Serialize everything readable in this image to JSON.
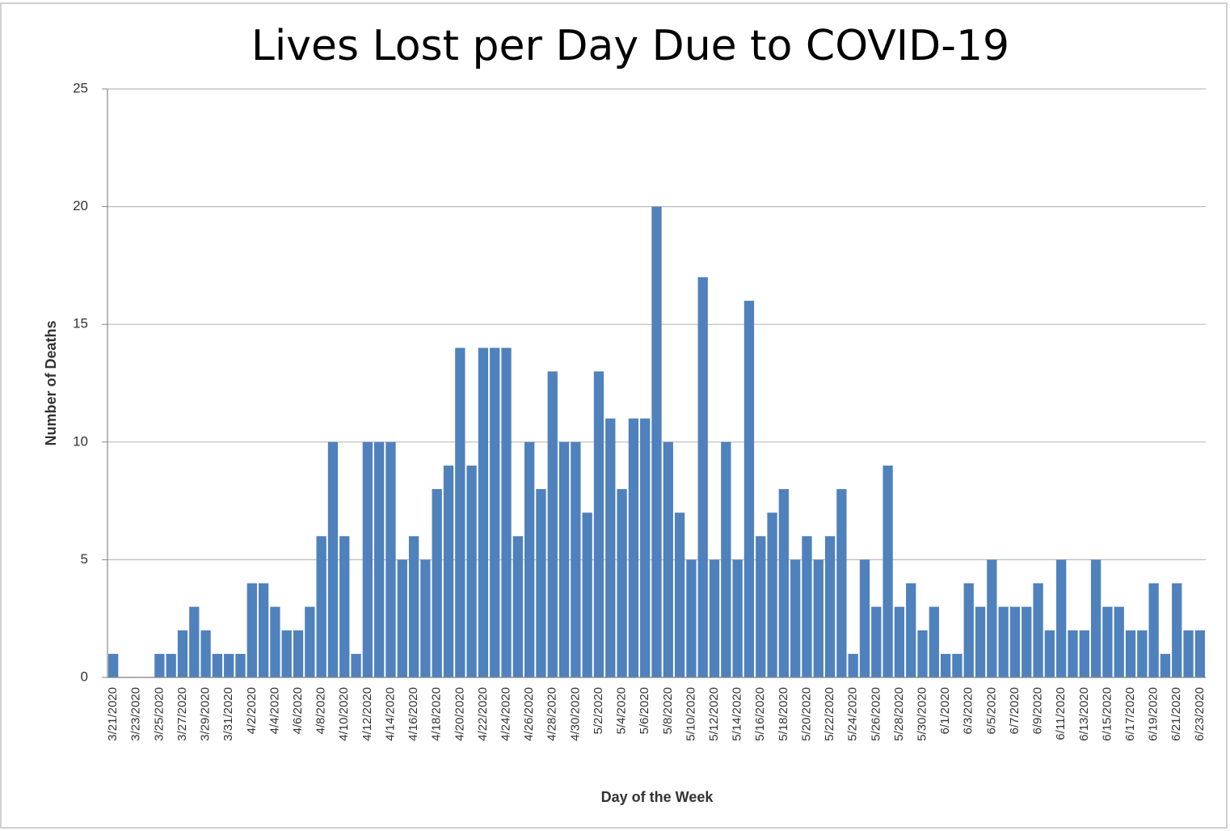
{
  "chart_data": {
    "type": "bar",
    "title": "Lives Lost per Day Due to COVID-19",
    "x_label": "Day of the Week",
    "y_label": "Number of Deaths",
    "color": "#4f81bd",
    "categories": [
      "3/21/2020",
      null,
      "3/23/2020",
      null,
      "3/25/2020",
      null,
      "3/27/2020",
      null,
      "3/29/2020",
      null,
      "3/31/2020",
      null,
      "4/2/2020",
      null,
      "4/4/2020",
      null,
      "4/6/2020",
      null,
      "4/8/2020",
      null,
      "4/10/2020",
      null,
      "4/12/2020",
      null,
      "4/14/2020",
      null,
      "4/16/2020",
      null,
      "4/18/2020",
      null,
      "4/20/2020",
      null,
      "4/22/2020",
      null,
      "4/24/2020",
      null,
      "4/26/2020",
      null,
      "4/28/2020",
      null,
      "4/30/2020",
      null,
      "5/2/2020",
      null,
      "5/4/2020",
      null,
      "5/6/2020",
      null,
      "5/8/2020",
      null,
      "5/10/2020",
      null,
      "5/12/2020",
      null,
      "5/14/2020",
      null,
      "5/16/2020",
      null,
      "5/18/2020",
      null,
      "5/20/2020",
      null,
      "5/22/2020",
      null,
      "5/24/2020",
      null,
      "5/26/2020",
      null,
      "5/28/2020",
      null,
      "5/30/2020",
      null,
      "6/1/2020",
      null,
      "6/3/2020",
      null,
      "6/5/2020",
      null,
      "6/7/2020",
      null,
      "6/9/2020",
      null,
      "6/11/2020",
      null,
      "6/13/2020",
      null,
      "6/15/2020",
      null,
      "6/17/2020",
      null,
      "6/19/2020",
      null,
      "6/21/2020",
      null,
      "6/23/2020"
    ],
    "values": [
      1,
      0,
      0,
      0,
      1,
      1,
      2,
      3,
      2,
      1,
      1,
      1,
      4,
      4,
      3,
      2,
      2,
      3,
      6,
      10,
      6,
      1,
      10,
      10,
      10,
      5,
      6,
      5,
      8,
      9,
      14,
      9,
      14,
      14,
      14,
      6,
      10,
      8,
      13,
      10,
      10,
      7,
      13,
      11,
      8,
      11,
      11,
      20,
      10,
      7,
      5,
      17,
      5,
      10,
      5,
      16,
      6,
      7,
      8,
      5,
      6,
      5,
      6,
      8,
      1,
      5,
      3,
      9,
      3,
      4,
      2,
      3,
      1,
      1,
      4,
      3,
      5,
      3,
      3,
      3,
      4,
      2,
      5,
      2,
      2,
      5,
      3,
      3,
      2,
      2,
      4,
      1,
      4,
      2,
      2
    ],
    "ylim": [
      0,
      25
    ],
    "yticks": [
      0,
      5,
      10,
      15,
      20,
      25
    ],
    "grid": true
  }
}
